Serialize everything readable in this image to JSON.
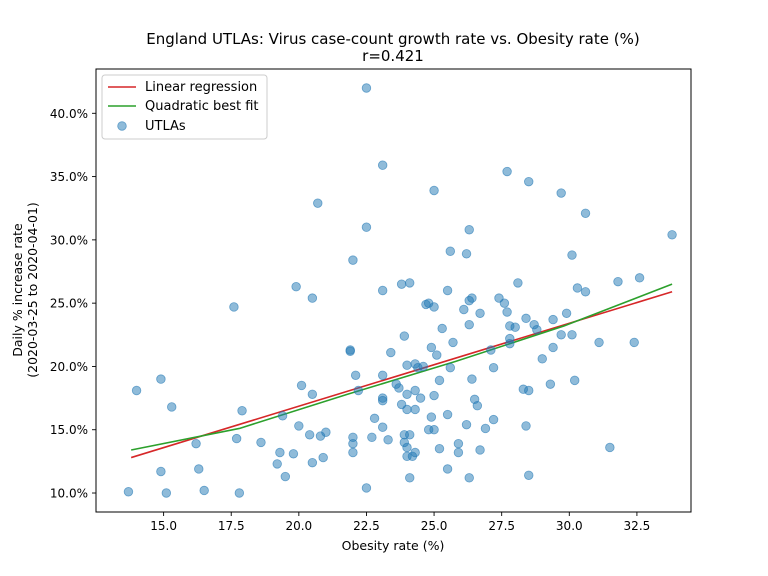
{
  "chart_data": {
    "type": "scatter",
    "title": "England UTLAs: Virus case-count growth rate vs. Obesity rate (%)",
    "subtitle": "r=0.421",
    "xlabel": "Obesity rate (%)",
    "ylabel_lines": [
      "Daily % increase rate",
      "(2020-03-25 to 2020-04-01)"
    ],
    "xlim": [
      12.5,
      34.5
    ],
    "ylim": [
      0.085,
      0.435
    ],
    "x_ticks": [
      15.0,
      17.5,
      20.0,
      22.5,
      25.0,
      27.5,
      30.0,
      32.5
    ],
    "x_tick_labels": [
      "15.0",
      "17.5",
      "20.0",
      "22.5",
      "25.0",
      "27.5",
      "30.0",
      "32.5"
    ],
    "y_ticks": [
      0.1,
      0.15,
      0.2,
      0.25,
      0.3,
      0.35,
      0.4
    ],
    "y_tick_labels": [
      "10.0%",
      "15.0%",
      "20.0%",
      "25.0%",
      "30.0%",
      "35.0%",
      "40.0%"
    ],
    "grid": false,
    "legend_position": "upper-left",
    "legend": [
      {
        "label": "Linear regression",
        "kind": "line",
        "color": "#d62728"
      },
      {
        "label": "Quadratic best fit",
        "kind": "line",
        "color": "#2ca02c"
      },
      {
        "label": "UTLAs",
        "kind": "marker",
        "color": "#1f77b4"
      }
    ],
    "linear_fit": {
      "x": [
        13.8,
        33.8
      ],
      "y": [
        0.128,
        0.259
      ]
    },
    "quadratic_fit": {
      "x": [
        13.8,
        17.8,
        21.8,
        25.8,
        29.8,
        33.8
      ],
      "y": [
        0.134,
        0.151,
        0.178,
        0.204,
        0.232,
        0.265
      ]
    },
    "points": [
      [
        13.7,
        0.101
      ],
      [
        14.0,
        0.181
      ],
      [
        14.9,
        0.19
      ],
      [
        14.9,
        0.117
      ],
      [
        15.1,
        0.1
      ],
      [
        15.3,
        0.168
      ],
      [
        16.2,
        0.139
      ],
      [
        16.3,
        0.119
      ],
      [
        16.5,
        0.102
      ],
      [
        17.6,
        0.247
      ],
      [
        17.7,
        0.143
      ],
      [
        17.8,
        0.1
      ],
      [
        17.9,
        0.165
      ],
      [
        18.6,
        0.14
      ],
      [
        19.2,
        0.123
      ],
      [
        19.3,
        0.132
      ],
      [
        19.4,
        0.161
      ],
      [
        19.5,
        0.113
      ],
      [
        19.8,
        0.131
      ],
      [
        19.9,
        0.263
      ],
      [
        20.0,
        0.153
      ],
      [
        20.1,
        0.185
      ],
      [
        20.4,
        0.146
      ],
      [
        20.5,
        0.254
      ],
      [
        20.5,
        0.178
      ],
      [
        20.5,
        0.124
      ],
      [
        20.7,
        0.329
      ],
      [
        20.8,
        0.145
      ],
      [
        20.9,
        0.128
      ],
      [
        21.0,
        0.148
      ],
      [
        21.9,
        0.213
      ],
      [
        21.9,
        0.212
      ],
      [
        22.0,
        0.139
      ],
      [
        22.0,
        0.144
      ],
      [
        22.0,
        0.132
      ],
      [
        22.0,
        0.284
      ],
      [
        22.1,
        0.193
      ],
      [
        22.2,
        0.181
      ],
      [
        22.5,
        0.31
      ],
      [
        22.5,
        0.104
      ],
      [
        22.5,
        0.42
      ],
      [
        22.7,
        0.144
      ],
      [
        22.8,
        0.159
      ],
      [
        23.1,
        0.175
      ],
      [
        23.1,
        0.173
      ],
      [
        23.1,
        0.152
      ],
      [
        23.1,
        0.193
      ],
      [
        23.1,
        0.26
      ],
      [
        23.1,
        0.359
      ],
      [
        23.3,
        0.142
      ],
      [
        23.4,
        0.211
      ],
      [
        23.6,
        0.186
      ],
      [
        23.7,
        0.183
      ],
      [
        23.8,
        0.17
      ],
      [
        23.8,
        0.265
      ],
      [
        23.9,
        0.146
      ],
      [
        23.9,
        0.224
      ],
      [
        23.9,
        0.14
      ],
      [
        24.0,
        0.178
      ],
      [
        24.0,
        0.166
      ],
      [
        24.0,
        0.201
      ],
      [
        24.0,
        0.136
      ],
      [
        24.0,
        0.129
      ],
      [
        24.1,
        0.146
      ],
      [
        24.1,
        0.112
      ],
      [
        24.1,
        0.266
      ],
      [
        24.2,
        0.129
      ],
      [
        24.3,
        0.202
      ],
      [
        24.3,
        0.132
      ],
      [
        24.3,
        0.181
      ],
      [
        24.3,
        0.166
      ],
      [
        24.4,
        0.199
      ],
      [
        24.5,
        0.175
      ],
      [
        24.6,
        0.2
      ],
      [
        24.7,
        0.249
      ],
      [
        24.8,
        0.25
      ],
      [
        24.8,
        0.15
      ],
      [
        24.9,
        0.16
      ],
      [
        24.9,
        0.215
      ],
      [
        25.0,
        0.15
      ],
      [
        25.0,
        0.177
      ],
      [
        25.0,
        0.247
      ],
      [
        25.0,
        0.339
      ],
      [
        25.1,
        0.209
      ],
      [
        25.2,
        0.189
      ],
      [
        25.2,
        0.135
      ],
      [
        25.3,
        0.23
      ],
      [
        25.5,
        0.162
      ],
      [
        25.5,
        0.26
      ],
      [
        25.5,
        0.119
      ],
      [
        25.6,
        0.199
      ],
      [
        25.6,
        0.291
      ],
      [
        25.7,
        0.219
      ],
      [
        25.9,
        0.132
      ],
      [
        25.9,
        0.139
      ],
      [
        26.1,
        0.245
      ],
      [
        26.2,
        0.289
      ],
      [
        26.2,
        0.154
      ],
      [
        26.3,
        0.233
      ],
      [
        26.3,
        0.112
      ],
      [
        26.3,
        0.252
      ],
      [
        26.3,
        0.308
      ],
      [
        26.4,
        0.254
      ],
      [
        26.4,
        0.19
      ],
      [
        26.5,
        0.174
      ],
      [
        26.6,
        0.169
      ],
      [
        26.7,
        0.134
      ],
      [
        26.7,
        0.242
      ],
      [
        26.9,
        0.151
      ],
      [
        27.1,
        0.213
      ],
      [
        27.2,
        0.199
      ],
      [
        27.2,
        0.158
      ],
      [
        27.4,
        0.254
      ],
      [
        27.6,
        0.25
      ],
      [
        27.7,
        0.243
      ],
      [
        27.7,
        0.354
      ],
      [
        27.8,
        0.232
      ],
      [
        27.8,
        0.222
      ],
      [
        27.8,
        0.218
      ],
      [
        28.0,
        0.231
      ],
      [
        28.1,
        0.266
      ],
      [
        28.3,
        0.182
      ],
      [
        28.4,
        0.238
      ],
      [
        28.4,
        0.153
      ],
      [
        28.5,
        0.114
      ],
      [
        28.5,
        0.181
      ],
      [
        28.5,
        0.346
      ],
      [
        28.7,
        0.233
      ],
      [
        28.8,
        0.229
      ],
      [
        29.0,
        0.206
      ],
      [
        29.3,
        0.186
      ],
      [
        29.4,
        0.215
      ],
      [
        29.4,
        0.237
      ],
      [
        29.7,
        0.225
      ],
      [
        29.7,
        0.337
      ],
      [
        29.9,
        0.242
      ],
      [
        30.1,
        0.288
      ],
      [
        30.1,
        0.225
      ],
      [
        30.2,
        0.189
      ],
      [
        30.3,
        0.262
      ],
      [
        30.6,
        0.259
      ],
      [
        30.6,
        0.321
      ],
      [
        31.1,
        0.219
      ],
      [
        31.5,
        0.136
      ],
      [
        31.8,
        0.267
      ],
      [
        32.4,
        0.219
      ],
      [
        32.6,
        0.27
      ],
      [
        33.8,
        0.304
      ]
    ]
  }
}
